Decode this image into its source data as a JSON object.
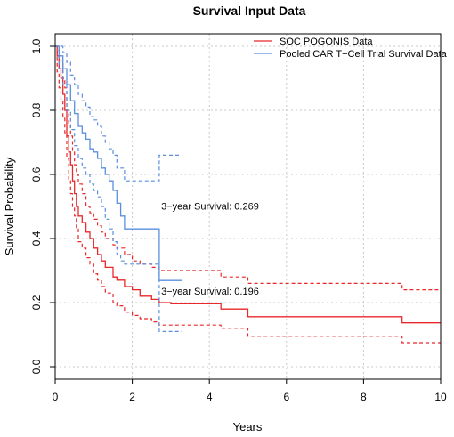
{
  "chart_data": {
    "type": "line",
    "title": "Survival Input Data",
    "xlabel": "Years",
    "ylabel": "Survival Probability",
    "xlim": [
      0,
      10
    ],
    "ylim": [
      0,
      1
    ],
    "x_ticks": [
      "0",
      "2",
      "4",
      "6",
      "8",
      "10"
    ],
    "y_ticks": [
      "0.0",
      "0.2",
      "0.4",
      "0.6",
      "0.8",
      "1.0"
    ],
    "grid": true,
    "legend_position": "top-right",
    "colors": {
      "soc": "#e8282b",
      "cart": "#5b8fde",
      "grid": "#c8c8c8"
    },
    "series": [
      {
        "name": "SOC POGONIS Data",
        "color": "#e8282b",
        "style": "step",
        "estimate": [
          [
            0,
            1.0
          ],
          [
            0.05,
            0.97
          ],
          [
            0.1,
            0.93
          ],
          [
            0.15,
            0.9
          ],
          [
            0.2,
            0.85
          ],
          [
            0.25,
            0.8
          ],
          [
            0.3,
            0.72
          ],
          [
            0.35,
            0.67
          ],
          [
            0.4,
            0.63
          ],
          [
            0.45,
            0.58
          ],
          [
            0.5,
            0.54
          ],
          [
            0.55,
            0.5
          ],
          [
            0.6,
            0.47
          ],
          [
            0.7,
            0.45
          ],
          [
            0.8,
            0.42
          ],
          [
            0.9,
            0.4
          ],
          [
            1.0,
            0.37
          ],
          [
            1.1,
            0.35
          ],
          [
            1.2,
            0.33
          ],
          [
            1.3,
            0.31
          ],
          [
            1.5,
            0.28
          ],
          [
            1.6,
            0.27
          ],
          [
            1.8,
            0.25
          ],
          [
            2.0,
            0.24
          ],
          [
            2.2,
            0.22
          ],
          [
            2.5,
            0.21
          ],
          [
            2.7,
            0.2
          ],
          [
            3.0,
            0.196
          ],
          [
            4.3,
            0.18
          ],
          [
            5.0,
            0.156
          ],
          [
            9.0,
            0.137
          ],
          [
            10,
            0.137
          ]
        ],
        "upper": [
          [
            0,
            1.0
          ],
          [
            0.05,
            1.0
          ],
          [
            0.1,
            0.97
          ],
          [
            0.15,
            0.95
          ],
          [
            0.2,
            0.9
          ],
          [
            0.25,
            0.87
          ],
          [
            0.3,
            0.8
          ],
          [
            0.35,
            0.76
          ],
          [
            0.4,
            0.72
          ],
          [
            0.45,
            0.67
          ],
          [
            0.5,
            0.63
          ],
          [
            0.55,
            0.6
          ],
          [
            0.6,
            0.57
          ],
          [
            0.7,
            0.54
          ],
          [
            0.8,
            0.5
          ],
          [
            0.9,
            0.48
          ],
          [
            1.0,
            0.46
          ],
          [
            1.1,
            0.44
          ],
          [
            1.2,
            0.42
          ],
          [
            1.3,
            0.4
          ],
          [
            1.5,
            0.38
          ],
          [
            1.6,
            0.37
          ],
          [
            1.8,
            0.35
          ],
          [
            2.0,
            0.33
          ],
          [
            2.2,
            0.32
          ],
          [
            2.5,
            0.31
          ],
          [
            2.7,
            0.3
          ],
          [
            4.3,
            0.28
          ],
          [
            5.0,
            0.26
          ],
          [
            9.0,
            0.24
          ],
          [
            10,
            0.24
          ]
        ],
        "lower": [
          [
            0,
            1.0
          ],
          [
            0.05,
            0.92
          ],
          [
            0.1,
            0.87
          ],
          [
            0.15,
            0.83
          ],
          [
            0.2,
            0.78
          ],
          [
            0.25,
            0.73
          ],
          [
            0.3,
            0.65
          ],
          [
            0.35,
            0.58
          ],
          [
            0.4,
            0.54
          ],
          [
            0.45,
            0.5
          ],
          [
            0.5,
            0.47
          ],
          [
            0.55,
            0.43
          ],
          [
            0.6,
            0.39
          ],
          [
            0.7,
            0.37
          ],
          [
            0.8,
            0.34
          ],
          [
            0.9,
            0.32
          ],
          [
            1.0,
            0.29
          ],
          [
            1.1,
            0.27
          ],
          [
            1.2,
            0.25
          ],
          [
            1.3,
            0.23
          ],
          [
            1.5,
            0.2
          ],
          [
            1.6,
            0.19
          ],
          [
            1.8,
            0.17
          ],
          [
            2.0,
            0.16
          ],
          [
            2.2,
            0.15
          ],
          [
            2.5,
            0.14
          ],
          [
            2.7,
            0.13
          ],
          [
            4.3,
            0.12
          ],
          [
            5.0,
            0.095
          ],
          [
            9.0,
            0.075
          ],
          [
            10,
            0.075
          ]
        ]
      },
      {
        "name": "Pooled CAR T−Cell Trial Survival Data",
        "color": "#5b8fde",
        "style": "step",
        "estimate": [
          [
            0,
            1.0
          ],
          [
            0.1,
            0.97
          ],
          [
            0.2,
            0.93
          ],
          [
            0.3,
            0.88
          ],
          [
            0.4,
            0.83
          ],
          [
            0.5,
            0.79
          ],
          [
            0.6,
            0.75
          ],
          [
            0.7,
            0.73
          ],
          [
            0.8,
            0.71
          ],
          [
            0.9,
            0.68
          ],
          [
            1.0,
            0.67
          ],
          [
            1.1,
            0.65
          ],
          [
            1.2,
            0.62
          ],
          [
            1.3,
            0.6
          ],
          [
            1.4,
            0.58
          ],
          [
            1.5,
            0.55
          ],
          [
            1.6,
            0.51
          ],
          [
            1.7,
            0.47
          ],
          [
            1.8,
            0.43
          ],
          [
            2.7,
            0.269
          ],
          [
            3.3,
            0.269
          ]
        ],
        "upper": [
          [
            0,
            1.0
          ],
          [
            0.1,
            1.0
          ],
          [
            0.2,
            0.98
          ],
          [
            0.3,
            0.95
          ],
          [
            0.4,
            0.91
          ],
          [
            0.5,
            0.88
          ],
          [
            0.6,
            0.85
          ],
          [
            0.7,
            0.83
          ],
          [
            0.8,
            0.81
          ],
          [
            0.9,
            0.78
          ],
          [
            1.0,
            0.77
          ],
          [
            1.1,
            0.75
          ],
          [
            1.2,
            0.72
          ],
          [
            1.3,
            0.7
          ],
          [
            1.4,
            0.68
          ],
          [
            1.5,
            0.66
          ],
          [
            1.6,
            0.62
          ],
          [
            1.8,
            0.58
          ],
          [
            2.7,
            0.66
          ],
          [
            3.3,
            0.66
          ]
        ],
        "lower": [
          [
            0,
            1.0
          ],
          [
            0.1,
            0.93
          ],
          [
            0.2,
            0.88
          ],
          [
            0.3,
            0.8
          ],
          [
            0.4,
            0.74
          ],
          [
            0.5,
            0.69
          ],
          [
            0.6,
            0.65
          ],
          [
            0.7,
            0.62
          ],
          [
            0.8,
            0.6
          ],
          [
            0.9,
            0.57
          ],
          [
            1.0,
            0.55
          ],
          [
            1.1,
            0.53
          ],
          [
            1.2,
            0.5
          ],
          [
            1.3,
            0.46
          ],
          [
            1.4,
            0.43
          ],
          [
            1.5,
            0.39
          ],
          [
            1.6,
            0.35
          ],
          [
            1.7,
            0.33
          ],
          [
            1.8,
            0.32
          ],
          [
            2.7,
            0.11
          ],
          [
            3.3,
            0.11
          ]
        ]
      }
    ],
    "annotations": [
      {
        "text": "3−year Survival: 0.269",
        "x": 2.75,
        "y": 0.49
      },
      {
        "text": "3−year Survival: 0.196",
        "x": 2.75,
        "y": 0.225
      }
    ]
  }
}
